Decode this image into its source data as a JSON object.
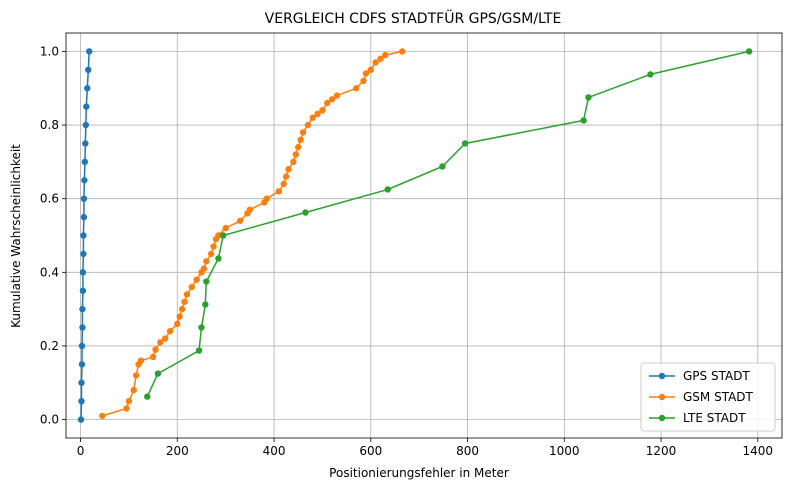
{
  "chart_data": {
    "type": "line",
    "title": "VERGLEICH CDFS STADTFÜR GPS/GSM/LTE",
    "xlabel": "Positionierungsfehler in Meter",
    "ylabel": "Kumulative Wahrscheinlichkeit",
    "xlim": [
      -30,
      1450
    ],
    "ylim": [
      -0.05,
      1.05
    ],
    "xticks": [
      0,
      200,
      400,
      600,
      800,
      1000,
      1200,
      1400
    ],
    "xtick_labels": [
      "0",
      "200",
      "400",
      "600",
      "800",
      "1000",
      "1200",
      "1400"
    ],
    "yticks": [
      0.0,
      0.2,
      0.4,
      0.6,
      0.8,
      1.0
    ],
    "ytick_labels": [
      "0.0",
      "0.2",
      "0.4",
      "0.6",
      "0.8",
      "1.0"
    ],
    "grid": true,
    "legend_position": "lower-right",
    "series": [
      {
        "name": "GPS STADT",
        "color": "#1f77b4",
        "x": [
          1,
          2,
          2,
          3,
          3,
          4,
          4,
          5,
          5,
          6,
          6,
          7,
          7,
          8,
          9,
          10,
          11,
          12,
          14,
          16,
          18
        ],
        "y": [
          0.0,
          0.05,
          0.1,
          0.15,
          0.2,
          0.25,
          0.3,
          0.35,
          0.4,
          0.45,
          0.5,
          0.55,
          0.6,
          0.65,
          0.7,
          0.75,
          0.8,
          0.85,
          0.9,
          0.95,
          1.0
        ]
      },
      {
        "name": "GSM STADT",
        "color": "#ff7f0e",
        "x": [
          45,
          95,
          100,
          110,
          115,
          120,
          125,
          150,
          155,
          165,
          175,
          185,
          200,
          205,
          210,
          215,
          220,
          230,
          240,
          250,
          255,
          260,
          270,
          275,
          280,
          285,
          300,
          330,
          345,
          350,
          380,
          385,
          410,
          420,
          425,
          430,
          440,
          445,
          450,
          455,
          460,
          470,
          480,
          490,
          500,
          510,
          520,
          530,
          570,
          585,
          590,
          600,
          610,
          620,
          630,
          665
        ],
        "y": [
          0.01,
          0.03,
          0.05,
          0.08,
          0.12,
          0.15,
          0.16,
          0.17,
          0.19,
          0.21,
          0.22,
          0.24,
          0.26,
          0.28,
          0.3,
          0.32,
          0.34,
          0.36,
          0.38,
          0.4,
          0.41,
          0.43,
          0.45,
          0.47,
          0.49,
          0.5,
          0.52,
          0.54,
          0.56,
          0.57,
          0.59,
          0.6,
          0.62,
          0.64,
          0.66,
          0.68,
          0.7,
          0.72,
          0.74,
          0.76,
          0.78,
          0.8,
          0.82,
          0.83,
          0.84,
          0.86,
          0.87,
          0.88,
          0.9,
          0.92,
          0.94,
          0.95,
          0.97,
          0.98,
          0.99,
          1.0
        ]
      },
      {
        "name": "LTE STADT",
        "color": "#2ca02c",
        "x": [
          138,
          160,
          245,
          250,
          258,
          260,
          285,
          295,
          465,
          635,
          748,
          795,
          1040,
          1050,
          1178,
          1382
        ],
        "y": [
          0.0625,
          0.125,
          0.1875,
          0.25,
          0.3125,
          0.375,
          0.4375,
          0.5,
          0.5625,
          0.625,
          0.6875,
          0.75,
          0.8125,
          0.875,
          0.9375,
          1.0
        ]
      }
    ]
  }
}
